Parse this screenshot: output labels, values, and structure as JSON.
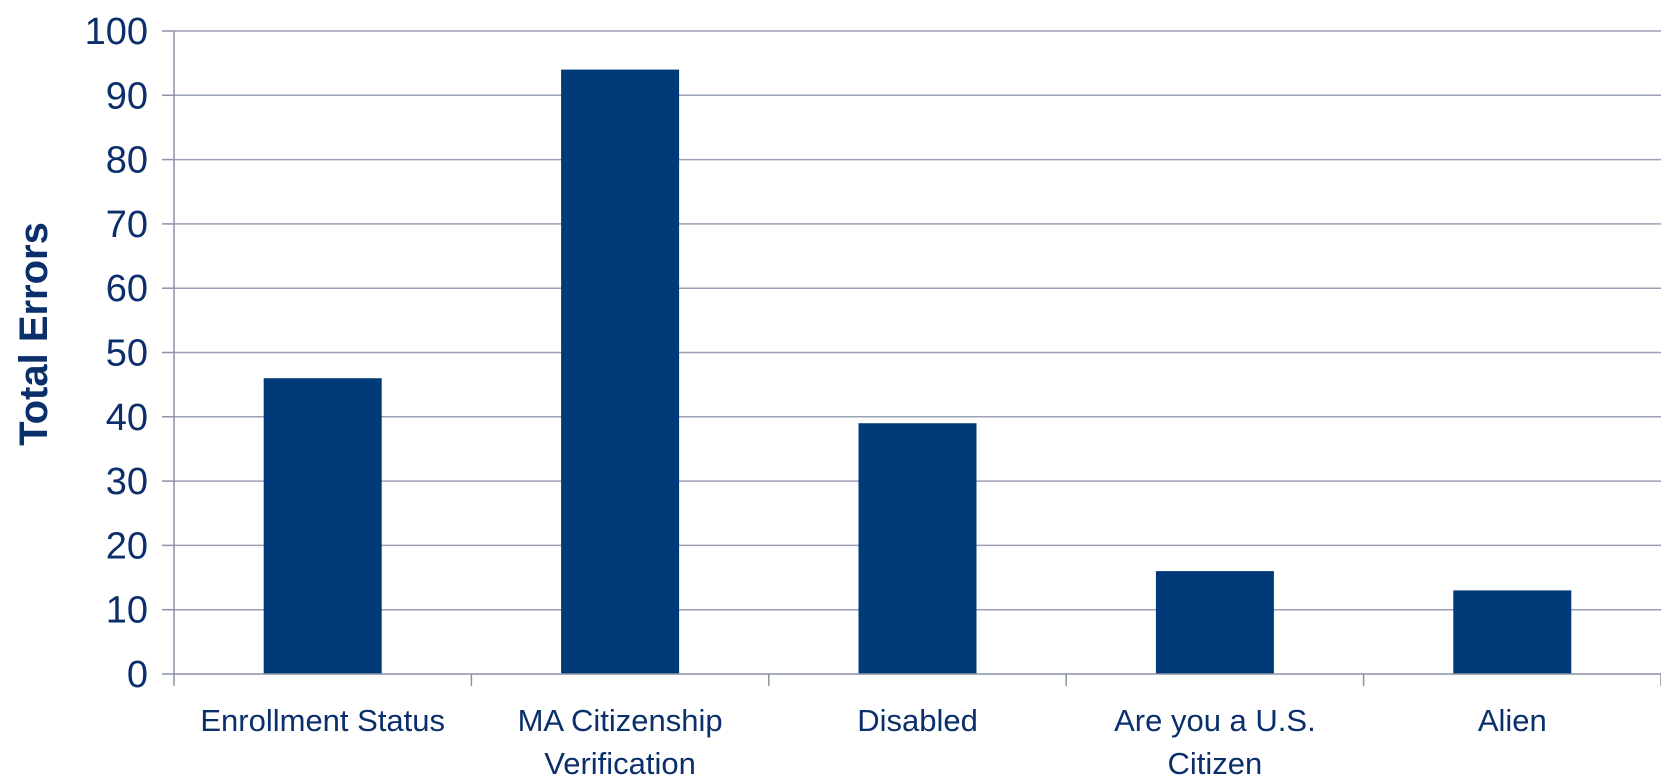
{
  "chart_data": {
    "type": "bar",
    "title": "",
    "xlabel": "",
    "ylabel": "Total Errors",
    "ylim": [
      0,
      100
    ],
    "yticks": [
      0,
      10,
      20,
      30,
      40,
      50,
      60,
      70,
      80,
      90,
      100
    ],
    "grid": true,
    "legend": "none",
    "categories": [
      [
        "Enrollment Status"
      ],
      [
        "MA Citizenship",
        "Verification"
      ],
      [
        "Disabled"
      ],
      [
        "Are you a U.S.",
        "Citizen"
      ],
      [
        "Alien"
      ]
    ],
    "values": [
      46,
      94,
      39,
      16,
      13
    ],
    "colors": {
      "bar": "#003a78",
      "grid": "#9aa0b4",
      "axis": "#8c92a6",
      "text": "#0a2f6a"
    }
  }
}
